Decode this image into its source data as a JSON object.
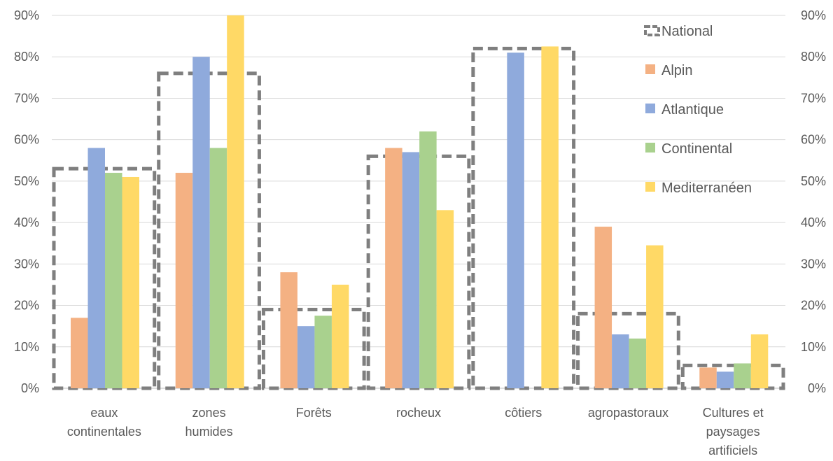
{
  "chart_data": {
    "type": "bar",
    "categories": [
      [
        "eaux",
        "continentales"
      ],
      [
        "zones",
        "humides"
      ],
      [
        "Forêts"
      ],
      [
        "rocheux"
      ],
      [
        "côtiers"
      ],
      [
        "agropastoraux"
      ],
      [
        "Cultures et",
        "paysages",
        "artificiels"
      ]
    ],
    "series": [
      {
        "name": "Alpin",
        "color": "#F4B183",
        "values": [
          17,
          52,
          28,
          58,
          null,
          39,
          5
        ]
      },
      {
        "name": "Atlantique",
        "color": "#8FAADC",
        "values": [
          58,
          80,
          15,
          57,
          81,
          13,
          4
        ]
      },
      {
        "name": "Continental",
        "color": "#A9D18E",
        "values": [
          52,
          58,
          17.5,
          62,
          null,
          12,
          6
        ]
      },
      {
        "name": "Mediterranéen",
        "color": "#FFD966",
        "values": [
          51,
          90,
          25,
          43,
          82.5,
          34.5,
          13
        ]
      }
    ],
    "national": {
      "name": "National",
      "color": "#7F7F7F",
      "values": [
        53,
        76,
        19,
        56,
        82,
        18,
        5.5
      ]
    },
    "ylim": [
      0,
      90
    ],
    "yticks": [
      "0%",
      "10%",
      "20%",
      "30%",
      "40%",
      "50%",
      "60%",
      "70%",
      "80%",
      "90%"
    ],
    "grid": true,
    "legend_position": "right",
    "secondary_axis": true
  }
}
